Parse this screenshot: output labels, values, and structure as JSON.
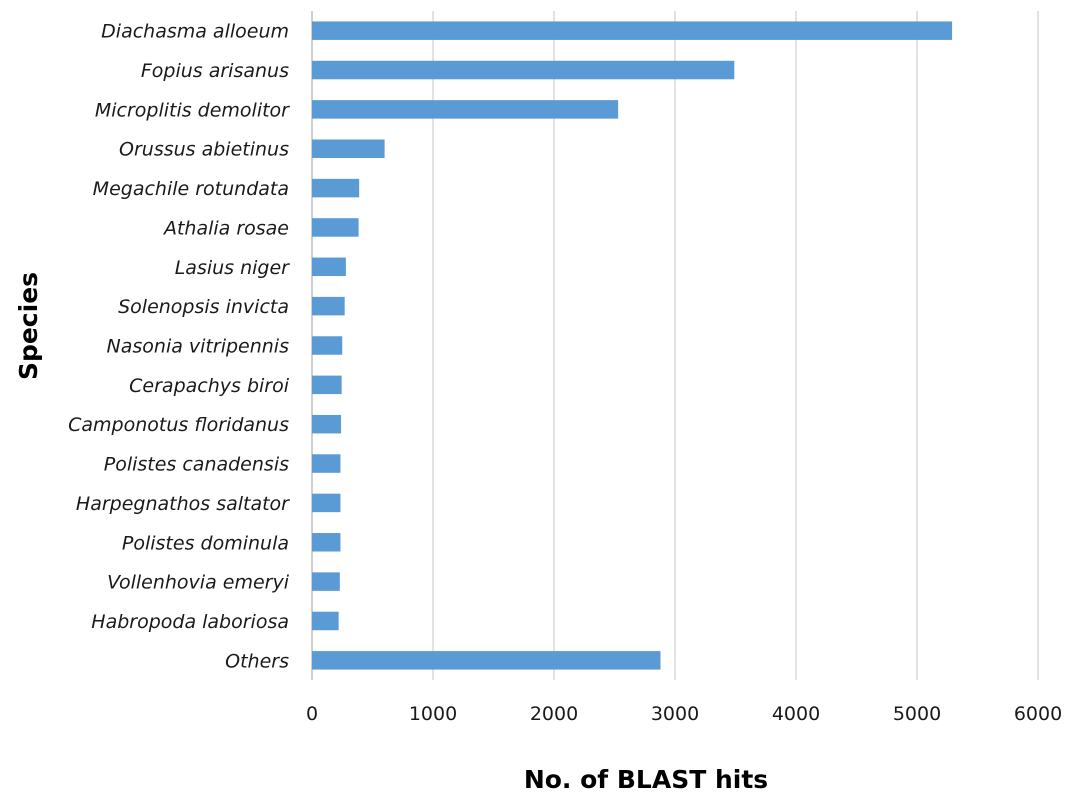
{
  "chart_data": {
    "type": "bar",
    "orientation": "horizontal",
    "categories": [
      "Diachasma alloeum",
      "Fopius arisanus",
      "Microplitis demolitor",
      "Orussus abietinus",
      "Megachile rotundata",
      "Athalia rosae",
      "Lasius niger",
      "Solenopsis invicta",
      "Nasonia vitripennis",
      "Cerapachys biroi",
      "Camponotus floridanus",
      "Polistes canadensis",
      "Harpegnathos saltator",
      "Polistes dominula",
      "Vollenhovia emeryi",
      "Habropoda laboriosa",
      "Others"
    ],
    "values": [
      5290,
      3490,
      2530,
      600,
      390,
      385,
      280,
      270,
      250,
      245,
      240,
      235,
      235,
      235,
      230,
      220,
      2880
    ],
    "xlabel": "No. of BLAST hits",
    "ylabel": "Species",
    "xlim": [
      0,
      6000
    ],
    "xticks": [
      "0",
      "1000",
      "2000",
      "3000",
      "4000",
      "5000",
      "6000"
    ],
    "grid": "vertical",
    "bar_color": "#5b9bd5"
  }
}
